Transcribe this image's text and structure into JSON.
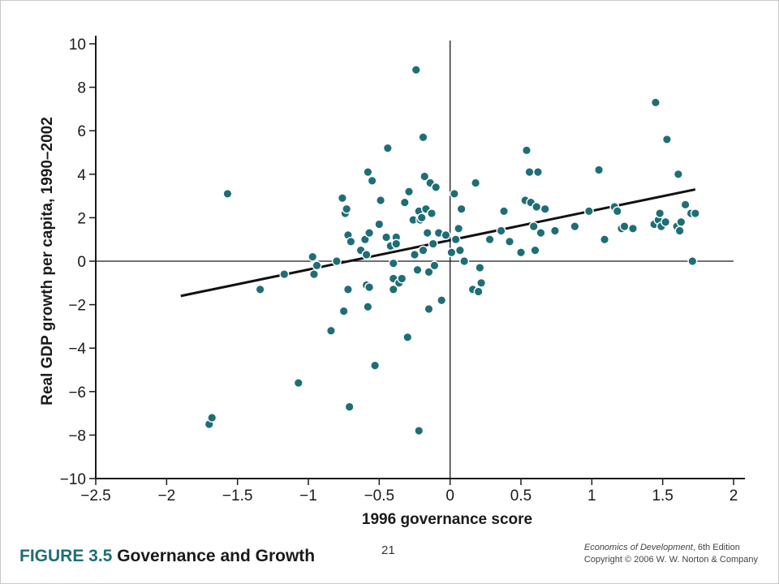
{
  "figure": {
    "number": "FIGURE 3.5",
    "title": "Governance and Growth",
    "slide_number": "21",
    "credit_book": "Economics of Development",
    "credit_edition": ", 6th Edition",
    "copyright": "Copyright © 2006 W. W. Norton & Company"
  },
  "colors": {
    "points": "#1f6e75",
    "axes": "#1a1a1a",
    "fit_line": "#111111"
  },
  "chart_data": {
    "type": "scatter",
    "title": "",
    "xlabel": "1996 governance score",
    "ylabel": "Real GDP growth per capita, 1990–2002",
    "xlim": [
      -2.5,
      2
    ],
    "ylim": [
      -10,
      10
    ],
    "grid": false,
    "x_ticks": [
      -2.5,
      -2,
      -1.5,
      -1,
      -0.5,
      0,
      0.5,
      1,
      1.5,
      2
    ],
    "x_tick_labels": [
      "−2.5",
      "−2",
      "−1.5",
      "−1",
      "−0.5",
      "0",
      "0.5",
      "1",
      "1.5",
      "2"
    ],
    "y_ticks": [
      10,
      8,
      6,
      4,
      2,
      0,
      -2,
      -4,
      -6,
      -8,
      -10
    ],
    "y_tick_labels": [
      "10",
      "8",
      "6",
      "4",
      "2",
      "0",
      "−2",
      "−4",
      "−6",
      "−8",
      "−10"
    ],
    "trend_line": {
      "x": [
        -1.9,
        1.73
      ],
      "y": [
        -1.6,
        3.3
      ]
    },
    "points": [
      [
        -1.7,
        -7.5
      ],
      [
        -1.68,
        -7.2
      ],
      [
        -1.57,
        3.1
      ],
      [
        -1.34,
        -1.3
      ],
      [
        -1.17,
        -0.6
      ],
      [
        -1.07,
        -5.6
      ],
      [
        -0.97,
        0.2
      ],
      [
        -0.96,
        -0.6
      ],
      [
        -0.94,
        -0.2
      ],
      [
        -0.84,
        -3.2
      ],
      [
        -0.8,
        0.0
      ],
      [
        -0.76,
        2.9
      ],
      [
        -0.75,
        -2.3
      ],
      [
        -0.74,
        2.2
      ],
      [
        -0.73,
        2.4
      ],
      [
        -0.72,
        1.2
      ],
      [
        -0.72,
        -1.3
      ],
      [
        -0.71,
        -6.7
      ],
      [
        -0.7,
        0.9
      ],
      [
        -0.63,
        0.5
      ],
      [
        -0.6,
        1.0
      ],
      [
        -0.59,
        0.3
      ],
      [
        -0.59,
        -1.1
      ],
      [
        -0.58,
        4.1
      ],
      [
        -0.58,
        -2.1
      ],
      [
        -0.57,
        -1.2
      ],
      [
        -0.57,
        1.3
      ],
      [
        -0.55,
        3.7
      ],
      [
        -0.53,
        -4.8
      ],
      [
        -0.5,
        1.7
      ],
      [
        -0.49,
        2.8
      ],
      [
        -0.45,
        1.1
      ],
      [
        -0.44,
        5.2
      ],
      [
        -0.42,
        0.7
      ],
      [
        -0.4,
        -0.8
      ],
      [
        -0.4,
        -1.3
      ],
      [
        -0.4,
        -0.1
      ],
      [
        -0.38,
        1.1
      ],
      [
        -0.38,
        0.8
      ],
      [
        -0.36,
        -1.0
      ],
      [
        -0.34,
        -0.8
      ],
      [
        -0.32,
        2.7
      ],
      [
        -0.3,
        -3.5
      ],
      [
        -0.29,
        3.2
      ],
      [
        -0.26,
        1.9
      ],
      [
        -0.25,
        0.3
      ],
      [
        -0.24,
        8.8
      ],
      [
        -0.23,
        -0.4
      ],
      [
        -0.22,
        -7.8
      ],
      [
        -0.22,
        2.3
      ],
      [
        -0.21,
        1.9
      ],
      [
        -0.2,
        2.0
      ],
      [
        -0.19,
        5.7
      ],
      [
        -0.19,
        0.5
      ],
      [
        -0.18,
        3.9
      ],
      [
        -0.17,
        2.4
      ],
      [
        -0.16,
        1.3
      ],
      [
        -0.15,
        -0.5
      ],
      [
        -0.15,
        -2.2
      ],
      [
        -0.14,
        3.6
      ],
      [
        -0.13,
        2.2
      ],
      [
        -0.12,
        0.8
      ],
      [
        -0.11,
        -0.2
      ],
      [
        -0.1,
        3.4
      ],
      [
        -0.08,
        1.3
      ],
      [
        -0.06,
        -1.8
      ],
      [
        -0.03,
        1.2
      ],
      [
        0.01,
        0.4
      ],
      [
        0.03,
        3.1
      ],
      [
        0.04,
        1.0
      ],
      [
        0.06,
        1.5
      ],
      [
        0.07,
        0.5
      ],
      [
        0.08,
        2.4
      ],
      [
        0.1,
        0.0
      ],
      [
        0.16,
        -1.3
      ],
      [
        0.18,
        3.6
      ],
      [
        0.2,
        -1.4
      ],
      [
        0.21,
        -0.3
      ],
      [
        0.22,
        -1.0
      ],
      [
        0.28,
        1.0
      ],
      [
        0.36,
        1.4
      ],
      [
        0.38,
        2.3
      ],
      [
        0.42,
        0.9
      ],
      [
        0.5,
        0.4
      ],
      [
        0.53,
        2.8
      ],
      [
        0.54,
        5.1
      ],
      [
        0.56,
        4.1
      ],
      [
        0.57,
        2.7
      ],
      [
        0.59,
        1.6
      ],
      [
        0.6,
        0.5
      ],
      [
        0.61,
        2.5
      ],
      [
        0.62,
        4.1
      ],
      [
        0.64,
        1.3
      ],
      [
        0.67,
        2.4
      ],
      [
        0.74,
        1.4
      ],
      [
        0.88,
        1.6
      ],
      [
        0.98,
        2.3
      ],
      [
        1.05,
        4.2
      ],
      [
        1.09,
        1.0
      ],
      [
        1.16,
        2.5
      ],
      [
        1.18,
        2.3
      ],
      [
        1.21,
        1.5
      ],
      [
        1.23,
        1.6
      ],
      [
        1.29,
        1.5
      ],
      [
        1.44,
        1.7
      ],
      [
        1.45,
        7.3
      ],
      [
        1.47,
        1.9
      ],
      [
        1.48,
        2.2
      ],
      [
        1.49,
        1.6
      ],
      [
        1.52,
        1.8
      ],
      [
        1.53,
        5.6
      ],
      [
        1.6,
        1.6
      ],
      [
        1.61,
        4.0
      ],
      [
        1.62,
        1.4
      ],
      [
        1.63,
        1.8
      ],
      [
        1.66,
        2.6
      ],
      [
        1.7,
        2.2
      ],
      [
        1.71,
        0.0
      ],
      [
        1.73,
        2.2
      ]
    ]
  }
}
